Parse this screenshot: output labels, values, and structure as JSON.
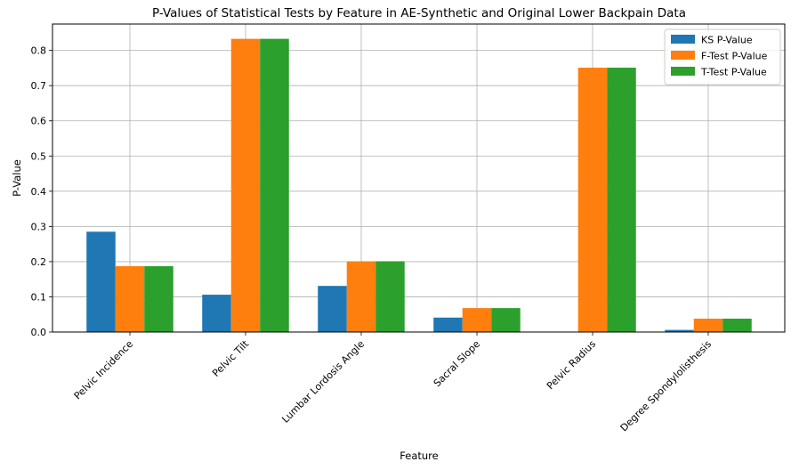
{
  "chart_data": {
    "type": "bar",
    "title": "P-Values of Statistical Tests by Feature in AE-Synthetic and Original Lower Backpain Data",
    "xlabel": "Feature",
    "ylabel": "P-Value",
    "ylim": [
      0,
      0.875
    ],
    "yticks": [
      "0.0",
      "0.1",
      "0.2",
      "0.3",
      "0.4",
      "0.5",
      "0.6",
      "0.7",
      "0.8"
    ],
    "grid": true,
    "legend_position": "top-right",
    "categories": [
      "Pelvic Incidence",
      "Pelvic Tilt",
      "Lumbar Lordosis Angle",
      "Sacral Slope",
      "Pelvic Radius",
      "Degree Spondylolisthesis"
    ],
    "series": [
      {
        "name": "KS P-Value",
        "color": "#1f77b4",
        "values": [
          0.285,
          0.106,
          0.131,
          0.041,
          0.0,
          0.006
        ]
      },
      {
        "name": "F-Test P-Value",
        "color": "#ff7f0e",
        "values": [
          0.187,
          0.833,
          0.201,
          0.068,
          0.751,
          0.038
        ]
      },
      {
        "name": "T-Test P-Value",
        "color": "#2ca02c",
        "values": [
          0.187,
          0.833,
          0.201,
          0.068,
          0.751,
          0.038
        ]
      }
    ]
  }
}
